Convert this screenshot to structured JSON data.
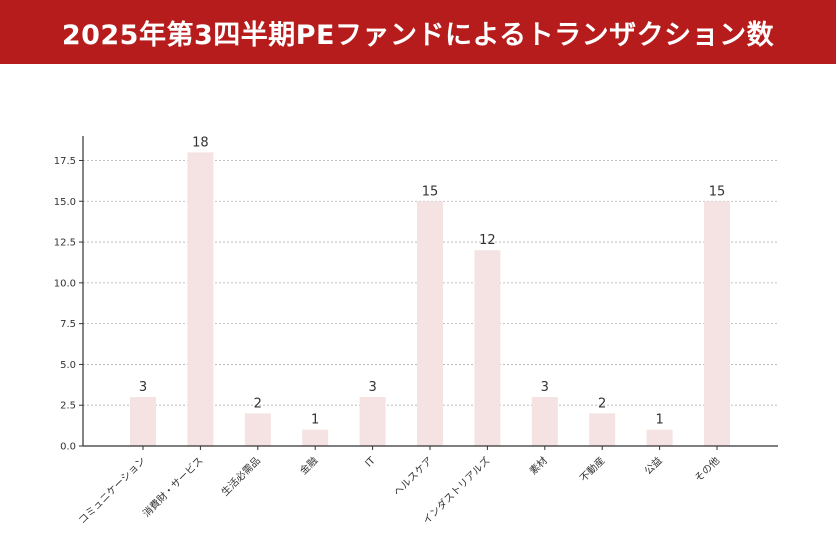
{
  "header": {
    "title": "2025年第3四半期PEファンドによるトランザクション数"
  },
  "colors": {
    "header_bg": "#b71c1c",
    "bar_fill": "#f5e3e3",
    "grid": "#b0b0b0",
    "axis": "#333333",
    "text": "#333333"
  },
  "chart_data": {
    "type": "bar",
    "title": "",
    "xlabel": "",
    "ylabel": "",
    "categories": [
      "コミュニケーション",
      "消費財・サービス",
      "生活必需品",
      "金融",
      "IT",
      "ヘルスケア",
      "インダストリアルズ",
      "素材",
      "不動産",
      "公益",
      "その他"
    ],
    "values": [
      3,
      18,
      2,
      1,
      3,
      15,
      12,
      3,
      2,
      1,
      15
    ],
    "data_labels": [
      "3",
      "18",
      "2",
      "1",
      "3",
      "15",
      "12",
      "3",
      "2",
      "1",
      "15"
    ],
    "ylim": [
      0,
      19
    ],
    "yticks": [
      0,
      2.5,
      5,
      7.5,
      10,
      12.5,
      15,
      17.5
    ],
    "ytick_labels": [
      "0.0",
      "2.5",
      "5.0",
      "7.5",
      "10.0",
      "12.5",
      "15.0",
      "17.5"
    ],
    "grid": true,
    "legend": false
  }
}
